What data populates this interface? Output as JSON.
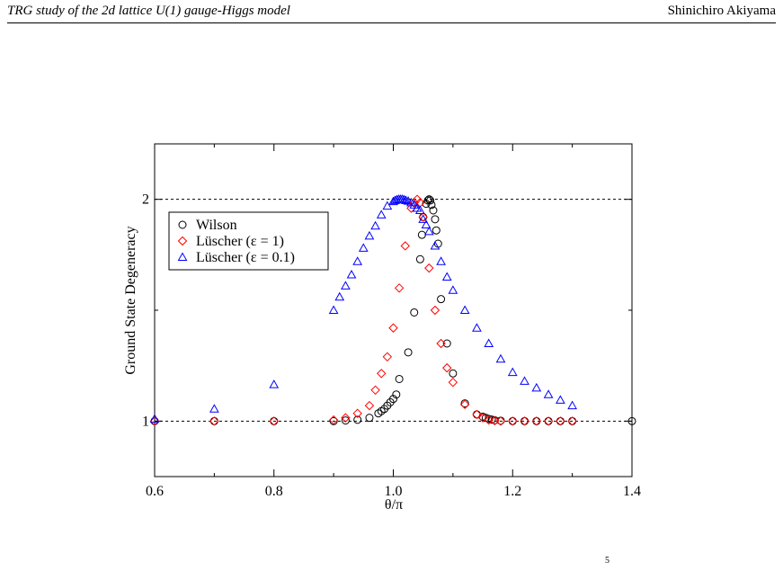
{
  "header": {
    "left": "TRG study of the 2d lattice U(1) gauge-Higgs model",
    "right": "Shinichiro Akiyama"
  },
  "page_number": "5",
  "chart_data": {
    "type": "scatter",
    "title": "",
    "xlabel": "θ/π",
    "ylabel": "Ground State Degeneracy",
    "xlim": [
      0.6,
      1.4
    ],
    "ylim": [
      0.75,
      2.25
    ],
    "x_ticks": [
      "0.6",
      "0.8",
      "1.0",
      "1.2",
      "1.4"
    ],
    "y_ticks": [
      "1",
      "2"
    ],
    "reference_lines": [
      1,
      2
    ],
    "grid": false,
    "legend_position": "upper-left",
    "series": [
      {
        "name": "Wilson",
        "marker": "circle",
        "color": "#000000",
        "points": [
          [
            0.6,
            1.0
          ],
          [
            0.7,
            1.0
          ],
          [
            0.8,
            1.0
          ],
          [
            0.9,
            1.0
          ],
          [
            0.92,
            1.003
          ],
          [
            0.94,
            1.006
          ],
          [
            0.96,
            1.015
          ],
          [
            0.975,
            1.035
          ],
          [
            0.98,
            1.045
          ],
          [
            0.985,
            1.055
          ],
          [
            0.99,
            1.07
          ],
          [
            0.995,
            1.085
          ],
          [
            1.0,
            1.1
          ],
          [
            1.005,
            1.12
          ],
          [
            1.01,
            1.19
          ],
          [
            1.025,
            1.31
          ],
          [
            1.035,
            1.49
          ],
          [
            1.045,
            1.73
          ],
          [
            1.048,
            1.84
          ],
          [
            1.05,
            1.92
          ],
          [
            1.055,
            1.98
          ],
          [
            1.058,
            1.995
          ],
          [
            1.06,
            2.0
          ],
          [
            1.062,
            1.995
          ],
          [
            1.064,
            1.975
          ],
          [
            1.067,
            1.95
          ],
          [
            1.07,
            1.91
          ],
          [
            1.072,
            1.86
          ],
          [
            1.075,
            1.8
          ],
          [
            1.08,
            1.55
          ],
          [
            1.09,
            1.35
          ],
          [
            1.1,
            1.215
          ],
          [
            1.12,
            1.08
          ],
          [
            1.14,
            1.03
          ],
          [
            1.15,
            1.02
          ],
          [
            1.155,
            1.015
          ],
          [
            1.16,
            1.01
          ],
          [
            1.165,
            1.007
          ],
          [
            1.17,
            1.004
          ],
          [
            1.18,
            1.002
          ],
          [
            1.2,
            1.0
          ],
          [
            1.22,
            1.0
          ],
          [
            1.24,
            1.0
          ],
          [
            1.26,
            1.0
          ],
          [
            1.28,
            1.0
          ],
          [
            1.3,
            1.0
          ],
          [
            1.4,
            1.0
          ]
        ]
      },
      {
        "name": "Lüscher (ε = 1)",
        "marker": "diamond",
        "color": "#ff0000",
        "points": [
          [
            0.6,
            1.0
          ],
          [
            0.7,
            1.0
          ],
          [
            0.8,
            1.0
          ],
          [
            0.9,
            1.005
          ],
          [
            0.92,
            1.015
          ],
          [
            0.94,
            1.035
          ],
          [
            0.96,
            1.07
          ],
          [
            0.97,
            1.14
          ],
          [
            0.98,
            1.215
          ],
          [
            0.99,
            1.29
          ],
          [
            1.0,
            1.42
          ],
          [
            1.01,
            1.6
          ],
          [
            1.02,
            1.79
          ],
          [
            1.03,
            1.96
          ],
          [
            1.035,
            1.985
          ],
          [
            1.04,
            2.0
          ],
          [
            1.045,
            1.985
          ],
          [
            1.05,
            1.92
          ],
          [
            1.06,
            1.69
          ],
          [
            1.07,
            1.5
          ],
          [
            1.08,
            1.35
          ],
          [
            1.09,
            1.24
          ],
          [
            1.1,
            1.175
          ],
          [
            1.12,
            1.075
          ],
          [
            1.14,
            1.03
          ],
          [
            1.15,
            1.015
          ],
          [
            1.16,
            1.005
          ],
          [
            1.17,
            1.002
          ],
          [
            1.18,
            1.0
          ],
          [
            1.2,
            1.0
          ],
          [
            1.22,
            1.0
          ],
          [
            1.24,
            1.0
          ],
          [
            1.26,
            1.0
          ],
          [
            1.28,
            1.0
          ],
          [
            1.3,
            1.0
          ]
        ]
      },
      {
        "name": "Lüscher (ε = 0.1)",
        "marker": "triangle",
        "color": "#0000ff",
        "points": [
          [
            0.6,
            1.01
          ],
          [
            0.7,
            1.055
          ],
          [
            0.8,
            1.165
          ],
          [
            0.9,
            1.5
          ],
          [
            0.91,
            1.56
          ],
          [
            0.92,
            1.61
          ],
          [
            0.93,
            1.66
          ],
          [
            0.94,
            1.72
          ],
          [
            0.95,
            1.78
          ],
          [
            0.96,
            1.835
          ],
          [
            0.97,
            1.88
          ],
          [
            0.98,
            1.93
          ],
          [
            0.99,
            1.97
          ],
          [
            1.0,
            1.99
          ],
          [
            1.003,
            1.995
          ],
          [
            1.006,
            1.998
          ],
          [
            1.009,
            2.0
          ],
          [
            1.012,
            2.0
          ],
          [
            1.015,
            2.0
          ],
          [
            1.018,
            1.998
          ],
          [
            1.021,
            1.995
          ],
          [
            1.025,
            1.992
          ],
          [
            1.03,
            1.985
          ],
          [
            1.035,
            1.975
          ],
          [
            1.04,
            1.96
          ],
          [
            1.045,
            1.95
          ],
          [
            1.05,
            1.91
          ],
          [
            1.055,
            1.885
          ],
          [
            1.06,
            1.855
          ],
          [
            1.07,
            1.79
          ],
          [
            1.08,
            1.72
          ],
          [
            1.09,
            1.65
          ],
          [
            1.1,
            1.59
          ],
          [
            1.12,
            1.5
          ],
          [
            1.14,
            1.42
          ],
          [
            1.16,
            1.35
          ],
          [
            1.18,
            1.28
          ],
          [
            1.2,
            1.22
          ],
          [
            1.22,
            1.18
          ],
          [
            1.24,
            1.15
          ],
          [
            1.26,
            1.12
          ],
          [
            1.28,
            1.095
          ],
          [
            1.3,
            1.07
          ]
        ]
      }
    ]
  }
}
